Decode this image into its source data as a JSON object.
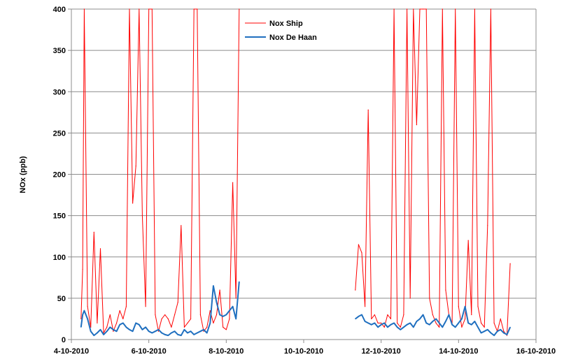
{
  "chart_data": {
    "type": "line",
    "title": "",
    "xlabel": "",
    "ylabel": "NOx (ppb)",
    "ylim": [
      0,
      400
    ],
    "xlim": [
      "2010-10-04",
      "2010-10-16"
    ],
    "y_ticks": [
      "0",
      "50",
      "100",
      "150",
      "200",
      "250",
      "300",
      "350",
      "400"
    ],
    "x_ticks": [
      "4-10-2010",
      "6-10-2010",
      "8-10-2010",
      "10-10-2010",
      "12-10-2010",
      "14-10-2010",
      "16-10-2010"
    ],
    "grid": "horizontal",
    "legend": "top-center",
    "series": [
      {
        "name": "Nox Ship",
        "color": "#ff0000",
        "x": [
          "2010-10-04 06:00",
          "2010-10-04 07:00",
          "2010-10-04 08:00",
          "2010-10-04 10:00",
          "2010-10-04 12:00",
          "2010-10-04 14:00",
          "2010-10-04 16:00",
          "2010-10-04 18:00",
          "2010-10-04 20:00",
          "2010-10-04 22:00",
          "2010-10-05 00:00",
          "2010-10-05 02:00",
          "2010-10-05 04:00",
          "2010-10-05 06:00",
          "2010-10-05 08:00",
          "2010-10-05 10:00",
          "2010-10-05 12:00",
          "2010-10-05 14:00",
          "2010-10-05 16:00",
          "2010-10-05 18:00",
          "2010-10-05 20:00",
          "2010-10-05 22:00",
          "2010-10-06 00:00",
          "2010-10-06 02:00",
          "2010-10-06 04:00",
          "2010-10-06 06:00",
          "2010-10-06 08:00",
          "2010-10-06 10:00",
          "2010-10-06 12:00",
          "2010-10-06 14:00",
          "2010-10-06 16:00",
          "2010-10-06 18:00",
          "2010-10-06 20:00",
          "2010-10-06 22:00",
          "2010-10-07 00:00",
          "2010-10-07 02:00",
          "2010-10-07 04:00",
          "2010-10-07 06:00",
          "2010-10-07 08:00",
          "2010-10-07 10:00",
          "2010-10-07 12:00",
          "2010-10-07 14:00",
          "2010-10-07 16:00",
          "2010-10-07 18:00",
          "2010-10-07 20:00",
          "2010-10-07 22:00",
          "2010-10-08 00:00",
          "2010-10-08 02:00",
          "2010-10-08 04:00",
          "2010-10-08 06:00",
          "2010-10-08 08:00",
          "2010-10-11 08:00",
          "2010-10-11 10:00",
          "2010-10-11 12:00",
          "2010-10-11 14:00",
          "2010-10-11 16:00",
          "2010-10-11 18:00",
          "2010-10-11 20:00",
          "2010-10-11 22:00",
          "2010-10-12 00:00",
          "2010-10-12 02:00",
          "2010-10-12 04:00",
          "2010-10-12 06:00",
          "2010-10-12 08:00",
          "2010-10-12 10:00",
          "2010-10-12 12:00",
          "2010-10-12 14:00",
          "2010-10-12 16:00",
          "2010-10-12 18:00",
          "2010-10-12 20:00",
          "2010-10-12 22:00",
          "2010-10-13 00:00",
          "2010-10-13 02:00",
          "2010-10-13 04:00",
          "2010-10-13 06:00",
          "2010-10-13 08:00",
          "2010-10-13 10:00",
          "2010-10-13 12:00",
          "2010-10-13 14:00",
          "2010-10-13 16:00",
          "2010-10-13 18:00",
          "2010-10-13 20:00",
          "2010-10-13 22:00",
          "2010-10-14 00:00",
          "2010-10-14 02:00",
          "2010-10-14 04:00",
          "2010-10-14 06:00",
          "2010-10-14 08:00",
          "2010-10-14 10:00",
          "2010-10-14 12:00",
          "2010-10-14 14:00",
          "2010-10-14 16:00",
          "2010-10-14 18:00",
          "2010-10-14 20:00",
          "2010-10-14 22:00",
          "2010-10-15 00:00",
          "2010-10-15 02:00",
          "2010-10-15 04:00",
          "2010-10-15 06:00",
          "2010-10-15 08:00"
        ],
        "values": [
          25,
          85,
          400,
          40,
          15,
          130,
          20,
          110,
          8,
          15,
          30,
          10,
          20,
          35,
          25,
          40,
          400,
          165,
          210,
          400,
          150,
          40,
          400,
          400,
          30,
          10,
          25,
          30,
          25,
          15,
          30,
          45,
          138,
          15,
          20,
          25,
          400,
          400,
          30,
          10,
          15,
          35,
          20,
          30,
          60,
          15,
          12,
          25,
          190,
          50,
          400,
          60,
          115,
          105,
          40,
          278,
          25,
          30,
          20,
          20,
          15,
          30,
          25,
          400,
          20,
          15,
          30,
          400,
          50,
          400,
          260,
          400,
          400,
          400,
          50,
          30,
          20,
          15,
          400,
          60,
          30,
          20,
          400,
          40,
          15,
          25,
          120,
          30,
          400,
          40,
          20,
          15,
          138,
          400,
          20,
          10,
          25,
          10,
          5,
          92
        ],
        "values_note": ""
      },
      {
        "name": "Nox De Haan",
        "color": "#1f6fbf",
        "x": [
          "2010-10-04 06:00",
          "2010-10-04 07:00",
          "2010-10-04 08:00",
          "2010-10-04 10:00",
          "2010-10-04 12:00",
          "2010-10-04 14:00",
          "2010-10-04 16:00",
          "2010-10-04 18:00",
          "2010-10-04 20:00",
          "2010-10-04 22:00",
          "2010-10-05 00:00",
          "2010-10-05 02:00",
          "2010-10-05 04:00",
          "2010-10-05 06:00",
          "2010-10-05 08:00",
          "2010-10-05 10:00",
          "2010-10-05 12:00",
          "2010-10-05 14:00",
          "2010-10-05 16:00",
          "2010-10-05 18:00",
          "2010-10-05 20:00",
          "2010-10-05 22:00",
          "2010-10-06 00:00",
          "2010-10-06 02:00",
          "2010-10-06 04:00",
          "2010-10-06 06:00",
          "2010-10-06 08:00",
          "2010-10-06 10:00",
          "2010-10-06 12:00",
          "2010-10-06 14:00",
          "2010-10-06 16:00",
          "2010-10-06 18:00",
          "2010-10-06 20:00",
          "2010-10-06 22:00",
          "2010-10-07 00:00",
          "2010-10-07 02:00",
          "2010-10-07 04:00",
          "2010-10-07 06:00",
          "2010-10-07 08:00",
          "2010-10-07 10:00",
          "2010-10-07 12:00",
          "2010-10-07 14:00",
          "2010-10-07 16:00",
          "2010-10-07 18:00",
          "2010-10-07 20:00",
          "2010-10-07 22:00",
          "2010-10-08 00:00",
          "2010-10-08 02:00",
          "2010-10-08 04:00",
          "2010-10-08 06:00",
          "2010-10-08 08:00",
          "2010-10-11 08:00",
          "2010-10-11 10:00",
          "2010-10-11 12:00",
          "2010-10-11 14:00",
          "2010-10-11 16:00",
          "2010-10-11 18:00",
          "2010-10-11 20:00",
          "2010-10-11 22:00",
          "2010-10-12 00:00",
          "2010-10-12 02:00",
          "2010-10-12 04:00",
          "2010-10-12 06:00",
          "2010-10-12 08:00",
          "2010-10-12 10:00",
          "2010-10-12 12:00",
          "2010-10-12 14:00",
          "2010-10-12 16:00",
          "2010-10-12 18:00",
          "2010-10-12 20:00",
          "2010-10-12 22:00",
          "2010-10-13 00:00",
          "2010-10-13 02:00",
          "2010-10-13 04:00",
          "2010-10-13 06:00",
          "2010-10-13 08:00",
          "2010-10-13 10:00",
          "2010-10-13 12:00",
          "2010-10-13 14:00",
          "2010-10-13 16:00",
          "2010-10-13 18:00",
          "2010-10-13 20:00",
          "2010-10-13 22:00",
          "2010-10-14 00:00",
          "2010-10-14 02:00",
          "2010-10-14 04:00",
          "2010-10-14 06:00",
          "2010-10-14 08:00",
          "2010-10-14 10:00",
          "2010-10-14 12:00",
          "2010-10-14 14:00",
          "2010-10-14 16:00",
          "2010-10-14 18:00",
          "2010-10-14 20:00",
          "2010-10-14 22:00",
          "2010-10-15 00:00",
          "2010-10-15 02:00",
          "2010-10-15 04:00",
          "2010-10-15 06:00",
          "2010-10-15 08:00"
        ],
        "values": [
          15,
          30,
          35,
          25,
          10,
          5,
          8,
          12,
          6,
          10,
          15,
          12,
          10,
          18,
          20,
          15,
          12,
          10,
          20,
          18,
          12,
          15,
          10,
          8,
          10,
          12,
          8,
          6,
          5,
          8,
          10,
          6,
          5,
          12,
          8,
          10,
          6,
          8,
          10,
          12,
          8,
          20,
          65,
          45,
          30,
          28,
          30,
          35,
          40,
          25,
          70,
          25,
          28,
          30,
          22,
          20,
          18,
          20,
          15,
          18,
          20,
          15,
          18,
          20,
          15,
          12,
          15,
          18,
          20,
          15,
          22,
          25,
          30,
          20,
          18,
          22,
          25,
          20,
          15,
          22,
          30,
          18,
          15,
          20,
          25,
          40,
          20,
          18,
          22,
          15,
          8,
          10,
          12,
          8,
          5,
          10,
          12,
          8,
          6,
          15
        ]
      }
    ]
  }
}
